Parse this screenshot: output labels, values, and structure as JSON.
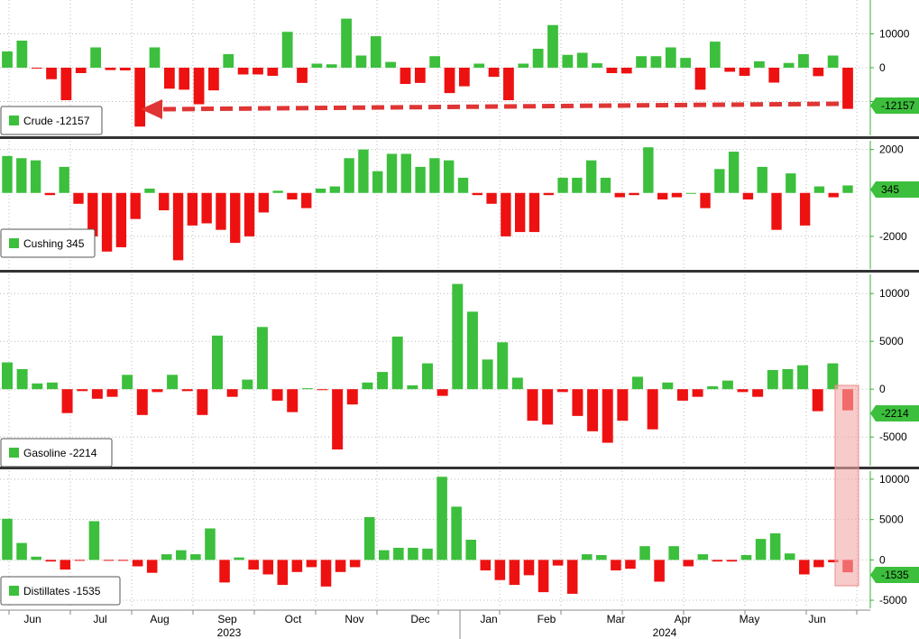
{
  "colors": {
    "positive": "#3cbf3c",
    "negative": "#ee1111",
    "axis": "#38b338",
    "grid": "#b8b8b8",
    "arrow": "#e03535",
    "highlight": "#f4a9a9"
  },
  "chart_data": [
    {
      "type": "bar",
      "series": [
        {
          "name": "Crude",
          "last": "-12157"
        }
      ],
      "ylim": [
        -20000,
        20000
      ],
      "yticks": [
        "10000",
        "0",
        "-10000"
      ],
      "tag_label": "-12157",
      "values": [
        4800,
        8000,
        -200,
        -3400,
        -9600,
        -1600,
        6000,
        -700,
        -800,
        -17400,
        6000,
        -6200,
        -6500,
        -10800,
        -6700,
        4000,
        -2000,
        -2000,
        -2400,
        10600,
        -4500,
        1200,
        1000,
        14500,
        3600,
        9300,
        1700,
        -4800,
        -4500,
        3400,
        -7500,
        -5500,
        1200,
        -2700,
        -9600,
        1200,
        5600,
        12600,
        3800,
        4400,
        1300,
        -1600,
        -1700,
        3400,
        3400,
        6000,
        2900,
        -6500,
        7700,
        -1200,
        -2400,
        1900,
        -4400,
        1400,
        4000,
        -2500,
        3600,
        -12157
      ]
    },
    {
      "type": "bar",
      "series": [
        {
          "name": "Cushing",
          "last": "345"
        }
      ],
      "ylim": [
        -3500,
        2400
      ],
      "yticks": [
        "2000",
        "-2000"
      ],
      "tag_label": "345",
      "values": [
        1700,
        1600,
        1500,
        -100,
        1200,
        -500,
        -2000,
        -2700,
        -2500,
        -1200,
        200,
        -800,
        -3100,
        -1500,
        -1400,
        -1700,
        -2300,
        -2000,
        -900,
        100,
        -300,
        -700,
        200,
        300,
        1600,
        2000,
        1000,
        1800,
        1800,
        1200,
        1600,
        1500,
        700,
        -100,
        -500,
        -2000,
        -1800,
        -1800,
        -100,
        700,
        700,
        1500,
        700,
        -200,
        -100,
        2100,
        -300,
        -200,
        0,
        -700,
        1100,
        1900,
        -300,
        1200,
        -1700,
        900,
        -1500,
        300,
        -200,
        345
      ]
    },
    {
      "type": "bar",
      "series": [
        {
          "name": "Gasoline",
          "last": "-2214"
        }
      ],
      "ylim": [
        -8000,
        12000
      ],
      "yticks": [
        "10000",
        "5000",
        "0",
        "-5000"
      ],
      "tag_label": "-2214",
      "values": [
        2800,
        2100,
        600,
        700,
        -2500,
        -200,
        -1000,
        -800,
        1500,
        -2700,
        -300,
        1500,
        -200,
        -2700,
        5600,
        -800,
        1000,
        6500,
        -1200,
        -2400,
        100,
        -100,
        -6300,
        -1600,
        700,
        1800,
        5500,
        400,
        2700,
        -700,
        11000,
        8100,
        3100,
        4900,
        1200,
        -3300,
        -3700,
        -300,
        -2800,
        -4400,
        -5600,
        -3300,
        1300,
        -4200,
        700,
        -1200,
        -800,
        300,
        900,
        -300,
        -800,
        2000,
        2100,
        2500,
        -2300,
        2700,
        -2214
      ]
    },
    {
      "type": "bar",
      "series": [
        {
          "name": "Distillates",
          "last": "-1535"
        }
      ],
      "ylim": [
        -6000,
        11000
      ],
      "yticks": [
        "10000",
        "5000",
        "0",
        "-5000"
      ],
      "tag_label": "-1535",
      "values": [
        5100,
        2100,
        400,
        -200,
        -1200,
        -100,
        4800,
        -100,
        -100,
        -800,
        -1600,
        700,
        1200,
        700,
        3900,
        -2800,
        300,
        -1200,
        -1800,
        -3100,
        -1500,
        -900,
        -3300,
        -1500,
        -900,
        5300,
        1200,
        1500,
        1500,
        1400,
        10300,
        6600,
        2500,
        -1300,
        -2500,
        -3100,
        -1900,
        -4000,
        -700,
        -4200,
        700,
        600,
        -1300,
        -1100,
        1700,
        -2700,
        1700,
        -800,
        700,
        -200,
        -200,
        600,
        2600,
        3300,
        800,
        -1800,
        -900,
        -300,
        -1535
      ]
    }
  ],
  "x_axis": {
    "months": [
      "Jun",
      "Jul",
      "Aug",
      "Sep",
      "Oct",
      "Nov",
      "Dec",
      "Jan",
      "Feb",
      "Mar",
      "Apr",
      "May",
      "Jun"
    ],
    "years": [
      "2023",
      "2024"
    ]
  }
}
